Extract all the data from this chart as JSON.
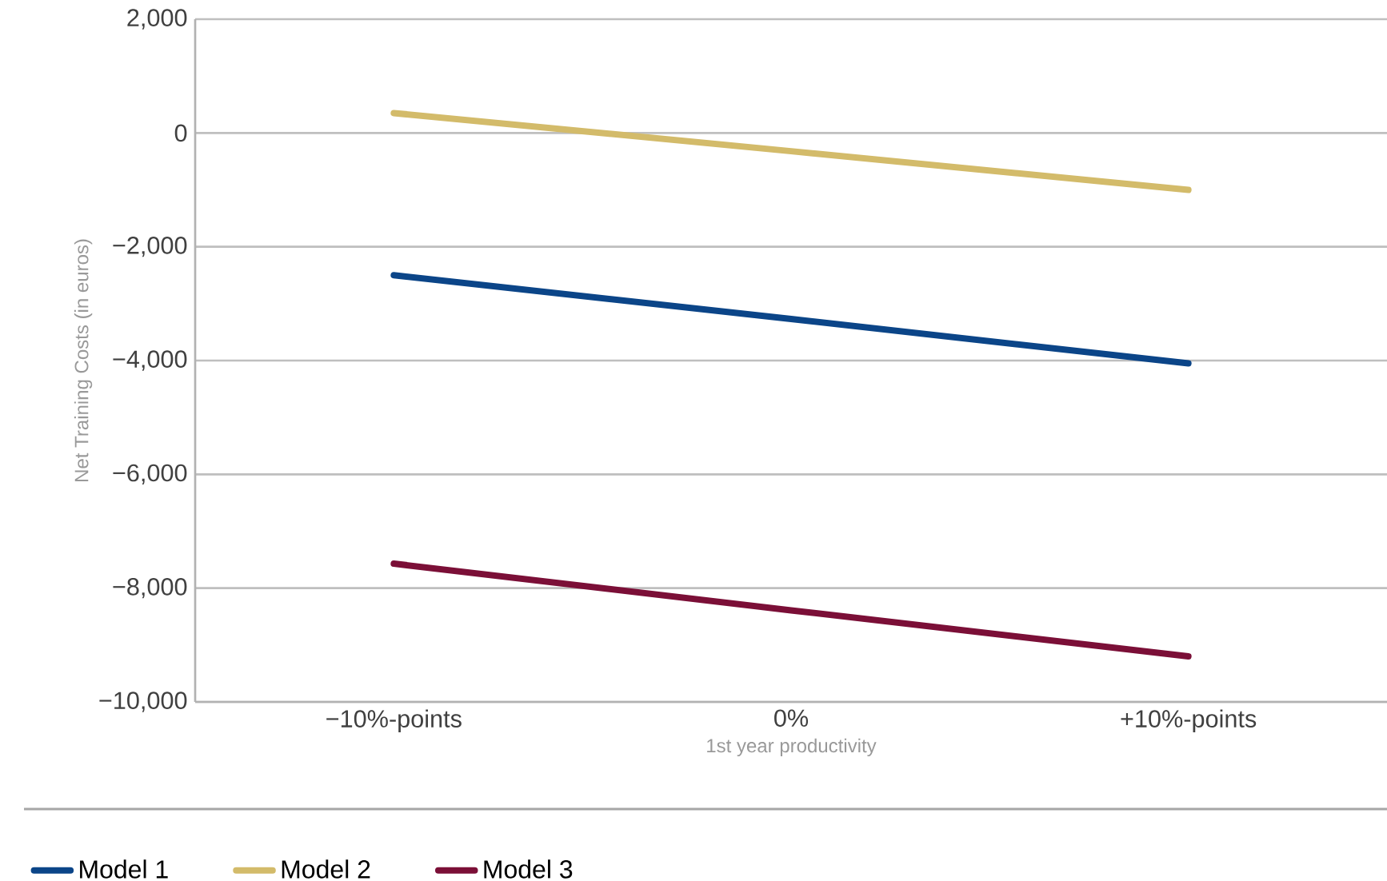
{
  "chart_data": {
    "type": "line",
    "xlabel": "1st year productivity",
    "ylabel": "Net Training Costs (in euros)",
    "categories": [
      "−10%-points",
      "0%",
      "+10%-points"
    ],
    "series": [
      {
        "name": "Model 1",
        "color": "#0b4588",
        "values": [
          -2500,
          -3270,
          -4050
        ]
      },
      {
        "name": "Model 2",
        "color": "#d3bb6a",
        "values": [
          350,
          -320,
          -1000
        ]
      },
      {
        "name": "Model 3",
        "color": "#7b0f37",
        "values": [
          -7570,
          -8390,
          -9200
        ]
      }
    ],
    "ylim": [
      -10000,
      2000
    ],
    "yticks": [
      {
        "value": -10000,
        "label": "−10,000"
      },
      {
        "value": -8000,
        "label": "−8,000"
      },
      {
        "value": -6000,
        "label": "−6,000"
      },
      {
        "value": -4000,
        "label": "−4,000"
      },
      {
        "value": -2000,
        "label": "−2,000"
      },
      0,
      {
        "value": 2000,
        "label": "2,000"
      }
    ],
    "grid": "y",
    "legend": "bottom",
    "marker": "none",
    "line_style": "solid"
  }
}
